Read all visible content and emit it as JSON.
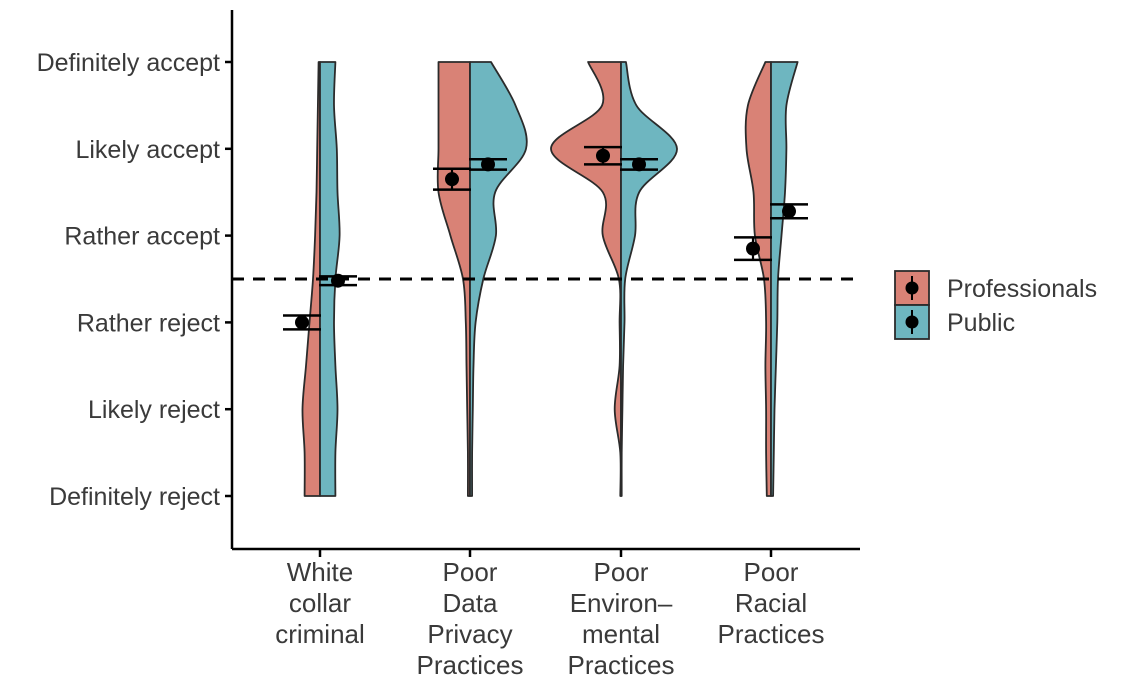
{
  "chart_data": {
    "type": "violin",
    "title": "",
    "xlabel": "",
    "ylabel": "",
    "y_scale": [
      "Definitely reject",
      "Likely reject",
      "Rather reject",
      "Rather accept",
      "Likely accept",
      "Definitely accept"
    ],
    "ylim": [
      1,
      6
    ],
    "reference_line": {
      "y": 3.5,
      "style": "dashed"
    },
    "categories": [
      [
        "White",
        "collar",
        "criminal"
      ],
      [
        "Poor",
        "Data",
        "Privacy",
        "Practices"
      ],
      [
        "Poor",
        "Environ–",
        "mental",
        "Practices"
      ],
      [
        "Poor",
        "Racial",
        "Practices"
      ]
    ],
    "series": [
      {
        "name": "Professionals",
        "color": "#D98276",
        "means": [
          3.0,
          4.65,
          4.92,
          3.85
        ],
        "ci": [
          [
            2.92,
            3.08
          ],
          [
            4.53,
            4.77
          ],
          [
            4.82,
            5.02
          ],
          [
            3.72,
            3.98
          ]
        ],
        "density_y": [
          1,
          1.5,
          2,
          2.5,
          3,
          3.5,
          4,
          4.5,
          5,
          5.5,
          6
        ],
        "density": [
          [
            0.22,
            0.22,
            0.25,
            0.2,
            0.15,
            0.1,
            0.07,
            0.05,
            0.04,
            0.03,
            0.02
          ],
          [
            0.03,
            0.03,
            0.04,
            0.05,
            0.06,
            0.1,
            0.28,
            0.45,
            0.45,
            0.45,
            0.45
          ],
          [
            0.01,
            0.01,
            0.09,
            0.02,
            0.02,
            0.03,
            0.26,
            0.26,
            1.0,
            0.27,
            0.47
          ],
          [
            0.06,
            0.07,
            0.07,
            0.08,
            0.07,
            0.1,
            0.23,
            0.25,
            0.35,
            0.33,
            0.08
          ]
        ]
      },
      {
        "name": "Public",
        "color": "#6EB6C0",
        "means": [
          3.48,
          4.82,
          4.82,
          4.28
        ],
        "ci": [
          [
            3.43,
            3.53
          ],
          [
            4.76,
            4.88
          ],
          [
            4.76,
            4.88
          ],
          [
            4.2,
            4.36
          ]
        ],
        "density_y": [
          1,
          1.5,
          2,
          2.5,
          3,
          3.5,
          4,
          4.5,
          5,
          5.5,
          6
        ],
        "density": [
          [
            0.22,
            0.22,
            0.25,
            0.22,
            0.2,
            0.22,
            0.28,
            0.25,
            0.24,
            0.2,
            0.22
          ],
          [
            0.03,
            0.03,
            0.04,
            0.05,
            0.08,
            0.19,
            0.37,
            0.36,
            0.8,
            0.65,
            0.3
          ],
          [
            0.01,
            0.01,
            0.02,
            0.03,
            0.05,
            0.06,
            0.2,
            0.26,
            0.8,
            0.22,
            0.07
          ],
          [
            0.03,
            0.04,
            0.05,
            0.07,
            0.09,
            0.1,
            0.15,
            0.2,
            0.22,
            0.22,
            0.38
          ]
        ]
      }
    ],
    "legend": {
      "position": "right"
    },
    "grid": false
  }
}
